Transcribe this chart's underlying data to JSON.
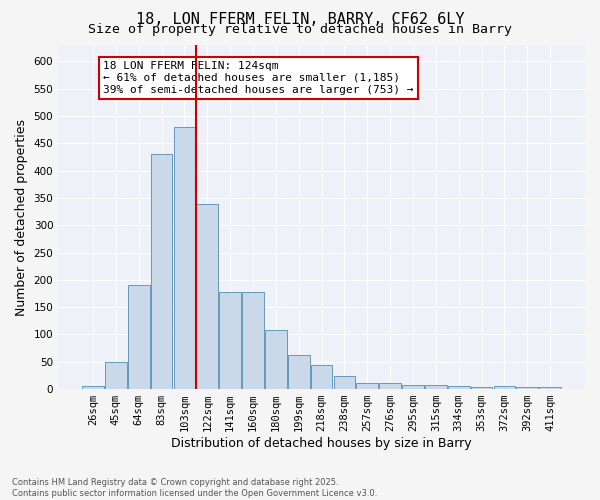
{
  "title": "18, LON FFERM FELIN, BARRY, CF62 6LY",
  "subtitle": "Size of property relative to detached houses in Barry",
  "xlabel": "Distribution of detached houses by size in Barry",
  "ylabel": "Number of detached properties",
  "categories": [
    "26sqm",
    "45sqm",
    "64sqm",
    "83sqm",
    "103sqm",
    "122sqm",
    "141sqm",
    "160sqm",
    "180sqm",
    "199sqm",
    "218sqm",
    "238sqm",
    "257sqm",
    "276sqm",
    "295sqm",
    "315sqm",
    "334sqm",
    "353sqm",
    "372sqm",
    "392sqm",
    "411sqm"
  ],
  "values": [
    5,
    50,
    190,
    430,
    480,
    338,
    178,
    178,
    108,
    62,
    45,
    24,
    11,
    11,
    8,
    7,
    5,
    4,
    5,
    4,
    4
  ],
  "bar_color": "#c9d9ea",
  "bar_edge_color": "#6699bb",
  "vline_index": 5,
  "vline_color": "#cc0000",
  "annotation_text": "18 LON FFERM FELIN: 124sqm\n← 61% of detached houses are smaller (1,185)\n39% of semi-detached houses are larger (753) →",
  "ann_box_fc": "#ffffff",
  "ann_box_ec": "#cc0000",
  "ylim_max": 630,
  "yticks": [
    0,
    50,
    100,
    150,
    200,
    250,
    300,
    350,
    400,
    450,
    500,
    550,
    600
  ],
  "plot_bg": "#eef2f8",
  "grid_color": "#ffffff",
  "fig_bg": "#f5f5f5",
  "footer": "Contains HM Land Registry data © Crown copyright and database right 2025.\nContains public sector information licensed under the Open Government Licence v3.0.",
  "title_fontsize": 11,
  "subtitle_fontsize": 9.5,
  "axis_label_fontsize": 9,
  "tick_fontsize": 7.5,
  "annotation_fontsize": 8,
  "footer_fontsize": 6.0
}
